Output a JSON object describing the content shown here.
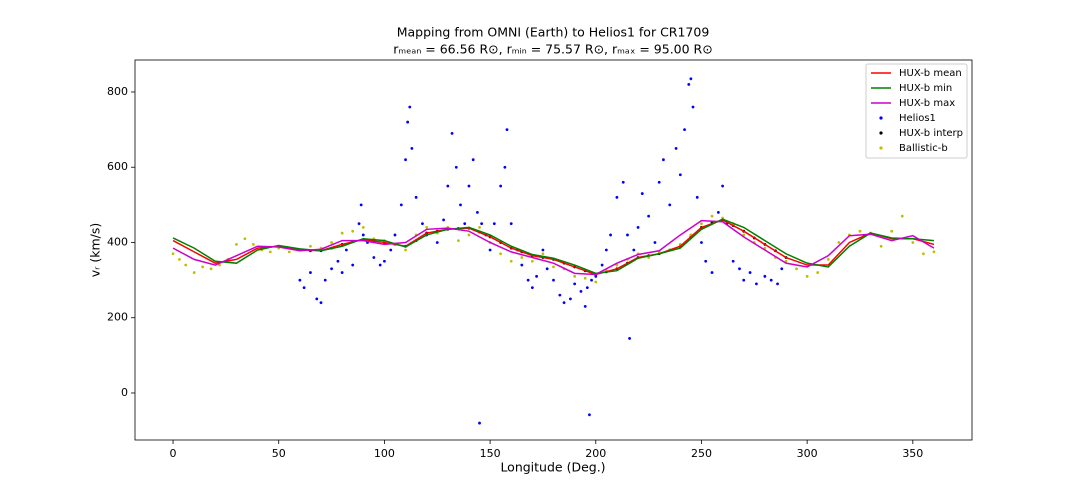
{
  "chart_data": {
    "type": "line",
    "title": "Mapping from OMNI (Earth) to Helios1 for CR1709",
    "subtitle": "rₘₑₐₙ = 66.56  R⊙, rₘᵢₙ = 75.57  R⊙, rₘₐₓ = 95.00  R⊙",
    "x_label": "Longitude (Deg.)",
    "y_label": "vᵣ (km/s)",
    "xlim": [
      -18,
      378
    ],
    "ylim": [
      -125,
      885
    ],
    "xticks": [
      0,
      50,
      100,
      150,
      200,
      250,
      300,
      350
    ],
    "yticks": [
      0,
      200,
      400,
      600,
      800
    ],
    "legend": "upper right",
    "series": [
      {
        "name": "HUX-b mean",
        "type": "line",
        "color": "#ff0000",
        "x": [
          0,
          10,
          20,
          30,
          40,
          50,
          60,
          70,
          80,
          90,
          100,
          110,
          120,
          130,
          140,
          150,
          160,
          170,
          180,
          190,
          200,
          210,
          220,
          230,
          240,
          250,
          260,
          270,
          280,
          290,
          300,
          310,
          320,
          330,
          340,
          350,
          360
        ],
        "values": [
          405,
          375,
          345,
          355,
          385,
          390,
          380,
          378,
          395,
          408,
          400,
          390,
          425,
          435,
          438,
          415,
          385,
          365,
          355,
          335,
          315,
          330,
          360,
          370,
          390,
          440,
          460,
          430,
          395,
          360,
          340,
          340,
          400,
          425,
          410,
          410,
          395
        ]
      },
      {
        "name": "HUX-b min",
        "type": "line",
        "color": "#008000",
        "x": [
          0,
          10,
          20,
          30,
          40,
          50,
          60,
          70,
          80,
          90,
          100,
          110,
          120,
          130,
          140,
          150,
          160,
          170,
          180,
          190,
          200,
          210,
          220,
          230,
          240,
          250,
          260,
          270,
          280,
          290,
          300,
          310,
          320,
          330,
          340,
          350,
          360
        ],
        "values": [
          412,
          385,
          350,
          345,
          380,
          392,
          383,
          378,
          390,
          410,
          405,
          388,
          420,
          435,
          440,
          420,
          390,
          368,
          358,
          340,
          318,
          325,
          358,
          370,
          385,
          435,
          462,
          440,
          405,
          370,
          345,
          335,
          390,
          425,
          412,
          410,
          405
        ]
      },
      {
        "name": "HUX-b max",
        "type": "line",
        "color": "#cc00cc",
        "x": [
          0,
          10,
          20,
          30,
          40,
          50,
          60,
          70,
          80,
          90,
          100,
          110,
          120,
          130,
          140,
          150,
          160,
          170,
          180,
          190,
          200,
          210,
          220,
          230,
          240,
          250,
          260,
          270,
          280,
          290,
          300,
          310,
          320,
          330,
          340,
          350,
          360
        ],
        "values": [
          385,
          355,
          340,
          365,
          390,
          388,
          378,
          382,
          405,
          405,
          395,
          400,
          435,
          438,
          430,
          400,
          375,
          360,
          345,
          318,
          315,
          345,
          368,
          378,
          420,
          458,
          455,
          415,
          380,
          345,
          335,
          365,
          418,
          422,
          405,
          418,
          385
        ]
      },
      {
        "name": "Helios1",
        "type": "scatter",
        "color": "#0000ff",
        "x": [
          60,
          62,
          65,
          68,
          70,
          72,
          75,
          78,
          80,
          82,
          85,
          88,
          89,
          90,
          92,
          95,
          98,
          100,
          103,
          105,
          108,
          110,
          111,
          112,
          113,
          115,
          118,
          120,
          125,
          128,
          130,
          132,
          134,
          136,
          138,
          140,
          142,
          144,
          145,
          146,
          148,
          150,
          152,
          155,
          157,
          158,
          160,
          163,
          165,
          168,
          170,
          172,
          175,
          177,
          180,
          183,
          185,
          188,
          190,
          193,
          195,
          196,
          197,
          198,
          200,
          203,
          205,
          207,
          210,
          213,
          215,
          216,
          218,
          220,
          222,
          225,
          228,
          230,
          232,
          235,
          238,
          240,
          242,
          244,
          245,
          246,
          248,
          250,
          252,
          255,
          258,
          260,
          262,
          265,
          268,
          270,
          273,
          276,
          280,
          283,
          286,
          288
        ],
        "values": [
          300,
          280,
          320,
          250,
          240,
          300,
          330,
          350,
          320,
          380,
          340,
          450,
          500,
          420,
          400,
          360,
          340,
          350,
          380,
          420,
          500,
          620,
          720,
          760,
          650,
          520,
          450,
          420,
          400,
          460,
          550,
          690,
          600,
          500,
          450,
          550,
          620,
          480,
          -80,
          450,
          420,
          380,
          450,
          550,
          600,
          700,
          450,
          380,
          340,
          300,
          280,
          310,
          380,
          330,
          300,
          260,
          240,
          250,
          290,
          270,
          230,
          280,
          -58,
          300,
          310,
          340,
          380,
          420,
          520,
          560,
          420,
          145,
          380,
          440,
          530,
          470,
          400,
          560,
          620,
          500,
          650,
          580,
          700,
          820,
          835,
          760,
          520,
          400,
          350,
          320,
          480,
          550,
          450,
          350,
          330,
          300,
          320,
          290,
          310,
          300,
          290,
          330
        ]
      },
      {
        "name": "HUX-b interp",
        "type": "scatter",
        "color": "#000000",
        "x": [
          60,
          65,
          70,
          75,
          80,
          85,
          90,
          95,
          100,
          105,
          110,
          115,
          120,
          125,
          130,
          135,
          140,
          145,
          150,
          155,
          160,
          165,
          170,
          175,
          180,
          185,
          190,
          195,
          200,
          205,
          210,
          215,
          220,
          225,
          230,
          235,
          240,
          245,
          250,
          255,
          260,
          265,
          270,
          275,
          280,
          285,
          290
        ],
        "values": [
          380,
          378,
          378,
          385,
          395,
          402,
          408,
          405,
          400,
          395,
          390,
          405,
          425,
          430,
          435,
          437,
          438,
          428,
          415,
          400,
          385,
          375,
          365,
          360,
          355,
          345,
          335,
          325,
          315,
          322,
          330,
          345,
          360,
          365,
          370,
          380,
          390,
          415,
          440,
          452,
          460,
          445,
          430,
          412,
          395,
          378,
          360
        ]
      },
      {
        "name": "Ballistic-b",
        "type": "scatter",
        "color": "#bfbf00",
        "x": [
          0,
          3,
          6,
          10,
          14,
          18,
          22,
          26,
          30,
          34,
          38,
          42,
          46,
          50,
          55,
          60,
          65,
          70,
          75,
          80,
          85,
          90,
          95,
          100,
          105,
          110,
          115,
          120,
          125,
          130,
          135,
          140,
          145,
          150,
          155,
          160,
          165,
          170,
          175,
          180,
          185,
          190,
          195,
          200,
          205,
          210,
          215,
          220,
          225,
          230,
          235,
          240,
          245,
          250,
          255,
          260,
          265,
          270,
          275,
          280,
          285,
          290,
          295,
          300,
          305,
          310,
          315,
          320,
          325,
          330,
          335,
          340,
          345,
          350,
          355,
          360
        ],
        "values": [
          370,
          355,
          340,
          320,
          335,
          330,
          340,
          355,
          395,
          410,
          395,
          380,
          375,
          385,
          375,
          380,
          390,
          385,
          400,
          425,
          430,
          440,
          410,
          405,
          395,
          380,
          420,
          440,
          425,
          440,
          405,
          420,
          440,
          400,
          370,
          350,
          360,
          350,
          370,
          335,
          330,
          310,
          305,
          295,
          325,
          340,
          355,
          370,
          360,
          375,
          380,
          395,
          420,
          450,
          470,
          465,
          450,
          420,
          400,
          385,
          360,
          350,
          330,
          310,
          320,
          355,
          400,
          420,
          430,
          425,
          390,
          430,
          470,
          400,
          370,
          375
        ]
      }
    ]
  }
}
